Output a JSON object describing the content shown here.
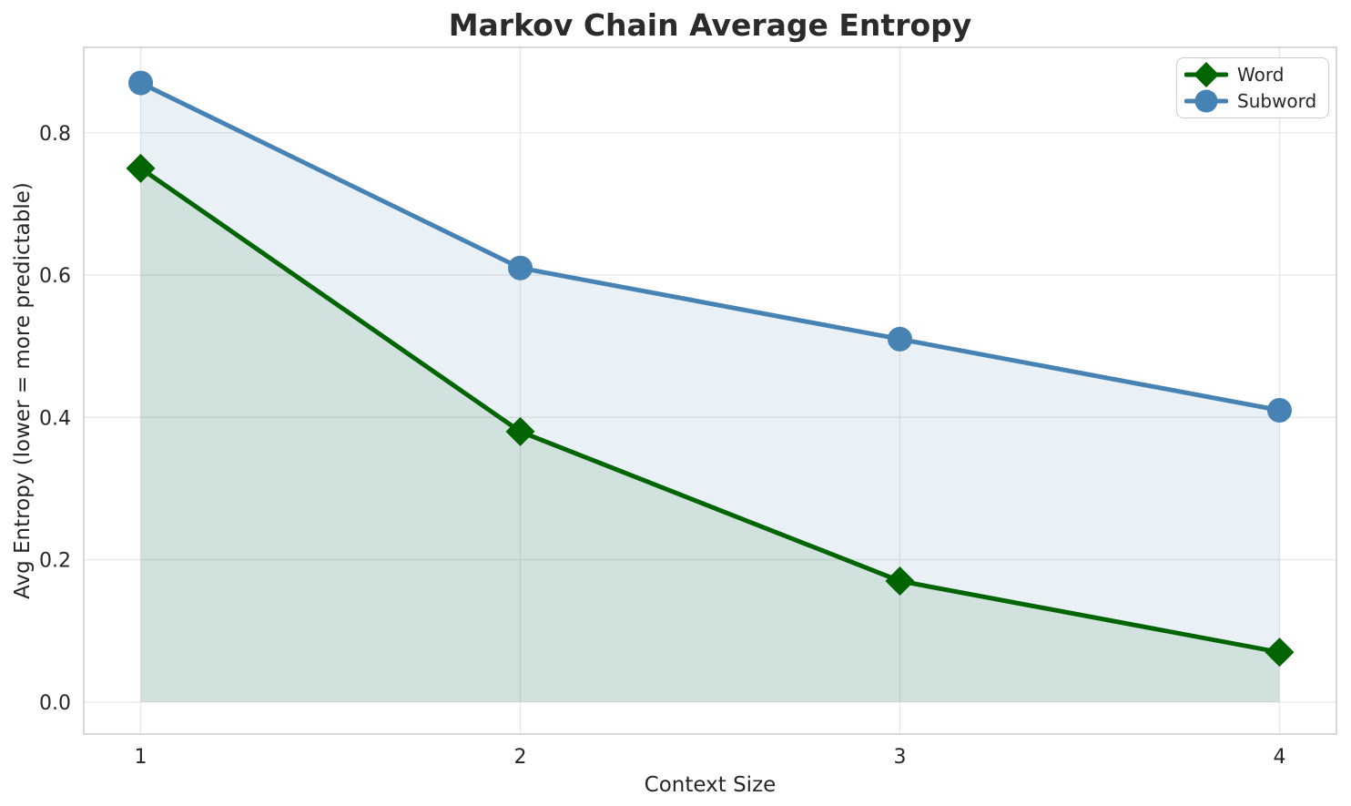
{
  "chart_data": {
    "type": "line",
    "title": "Markov Chain Average Entropy",
    "xlabel": "Context Size",
    "ylabel": "Avg Entropy (lower = more predictable)",
    "x": [
      1,
      2,
      3,
      4
    ],
    "series": [
      {
        "name": "Word",
        "marker": "diamond",
        "color": "#006400",
        "fill_color": "rgba(0,100,0,0.10)",
        "values": [
          0.75,
          0.38,
          0.17,
          0.07
        ]
      },
      {
        "name": "Subword",
        "marker": "circle",
        "color": "#4682b4",
        "fill_color": "rgba(70,130,180,0.12)",
        "values": [
          0.87,
          0.61,
          0.51,
          0.41
        ]
      }
    ],
    "fill_to_zero": true,
    "x_ticks": [
      "1",
      "2",
      "3",
      "4"
    ],
    "x_tick_values": [
      1,
      2,
      3,
      4
    ],
    "y_ticks": [
      "0.0",
      "0.2",
      "0.4",
      "0.6",
      "0.8"
    ],
    "y_tick_values": [
      0,
      0.2,
      0.4,
      0.6,
      0.8
    ],
    "xlim": [
      0.85,
      4.15
    ],
    "ylim": [
      -0.045,
      0.92
    ],
    "grid": true,
    "legend": {
      "position": "top-right",
      "entries": [
        "Word",
        "Subword"
      ]
    },
    "style": {
      "grid_color": "#e7e7e7",
      "spine_color": "#cbcbcb",
      "tick_label_color": "#262626",
      "text_color": "#262626",
      "title_color": "#2b2b2b",
      "background": "#ffffff"
    }
  }
}
